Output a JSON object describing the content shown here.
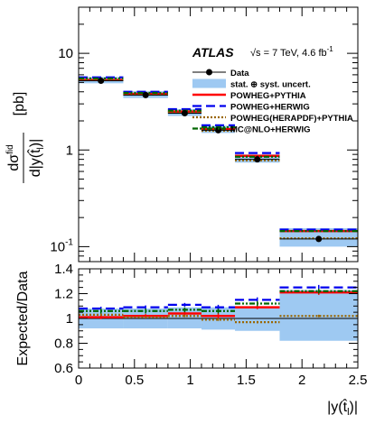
{
  "chart_data": [
    {
      "type": "line",
      "panel": "main",
      "ylabel": "dσ^fid / d|y(t̂_l)| [pb]",
      "yscale": "log",
      "ylim": [
        0.07,
        30
      ],
      "xlim": [
        0,
        2.5
      ],
      "yticks": [
        {
          "v": 0.1,
          "label": "10",
          "sup": "-1"
        },
        {
          "v": 1,
          "label": "1",
          "sup": ""
        },
        {
          "v": 10,
          "label": "10",
          "sup": ""
        }
      ],
      "atlas": "ATLAS",
      "energy_text": "√s = 7 TeV, 4.6 fb",
      "energy_sup": "-1",
      "bins": [
        [
          0,
          0.4
        ],
        [
          0.4,
          0.8
        ],
        [
          0.8,
          1.1
        ],
        [
          1.1,
          1.4
        ],
        [
          1.4,
          1.8
        ],
        [
          1.8,
          2.5
        ]
      ],
      "data_x": [
        0.2,
        0.6,
        0.95,
        1.25,
        1.6,
        2.15
      ],
      "data_y": [
        5.2,
        3.7,
        2.4,
        1.6,
        0.8,
        0.12
      ],
      "band": [
        [
          4.9,
          5.7
        ],
        [
          3.45,
          4.05
        ],
        [
          2.25,
          2.65
        ],
        [
          1.5,
          1.78
        ],
        [
          0.74,
          0.9
        ],
        [
          0.1,
          0.155
        ]
      ],
      "series": [
        {
          "name": "POWHEG+PYTHIA",
          "color": "#ff0000",
          "style": "solid",
          "values": [
            5.3,
            3.8,
            2.5,
            1.65,
            0.87,
            0.145
          ]
        },
        {
          "name": "POWHEG+HERWIG",
          "color": "#0000ee",
          "style": "dash",
          "values": [
            5.65,
            4.0,
            2.65,
            1.8,
            0.93,
            0.15
          ]
        },
        {
          "name": "POWHEG(HERAPDF)+PYTHIA",
          "color": "#996600",
          "style": "dot",
          "values": [
            5.35,
            3.75,
            2.45,
            1.58,
            0.78,
            0.122
          ]
        },
        {
          "name": "MC@NLO+HERWIG",
          "color": "#006600",
          "style": "dashdot",
          "values": [
            5.5,
            3.9,
            2.55,
            1.72,
            0.85,
            0.145
          ]
        }
      ],
      "legend": [
        {
          "label": "Data",
          "kind": "data"
        },
        {
          "label": "stat. ⊕ syst. uncert.",
          "kind": "band"
        },
        {
          "label": "POWHEG+PYTHIA",
          "kind": "series",
          "series": 0
        },
        {
          "label": "POWHEG+HERWIG",
          "kind": "series",
          "series": 1
        },
        {
          "label": "POWHEG(HERAPDF)+PYTHIA",
          "kind": "series",
          "series": 2
        },
        {
          "label": "MC@NLO+HERWIG",
          "kind": "series",
          "series": 3
        }
      ],
      "legend_position": "top-right"
    },
    {
      "type": "line",
      "panel": "ratio",
      "ylabel": "Expected/Data",
      "xlabel": "|y(t̂_l)|",
      "xlim": [
        0,
        2.5
      ],
      "ylim": [
        0.6,
        1.4
      ],
      "xticks": [
        0,
        0.5,
        1,
        1.5,
        2,
        2.5
      ],
      "xtick_labels": [
        "0",
        "0.5",
        "1",
        "1.5",
        "2",
        "2.5"
      ],
      "yticks": [
        0.6,
        0.8,
        1,
        1.2,
        1.4
      ],
      "ytick_labels": [
        "0.6",
        "0.8",
        "1",
        "1.2",
        "1.4"
      ],
      "reference_line": 1,
      "band": [
        [
          0.92,
          1.08
        ],
        [
          0.92,
          1.08
        ],
        [
          0.92,
          1.09
        ],
        [
          0.91,
          1.09
        ],
        [
          0.9,
          1.09
        ],
        [
          0.82,
          1.23
        ]
      ],
      "series": [
        {
          "name": "POWHEG+PYTHIA",
          "color": "#ff0000",
          "style": "solid",
          "values": [
            1.01,
            1.02,
            1.04,
            1.02,
            1.09,
            1.21
          ],
          "errors": [
            0.015,
            0.015,
            0.015,
            0.02,
            0.015,
            0.02
          ]
        },
        {
          "name": "POWHEG+HERWIG",
          "color": "#0000ee",
          "style": "dash",
          "values": [
            1.08,
            1.09,
            1.11,
            1.09,
            1.15,
            1.25
          ],
          "errors": [
            0.015,
            0.015,
            0.015,
            0.02,
            0.02,
            0.02
          ]
        },
        {
          "name": "POWHEG(HERAPDF)+PYTHIA",
          "color": "#996600",
          "style": "dot",
          "values": [
            1.03,
            1.01,
            1.02,
            0.99,
            0.97,
            1.02
          ],
          "errors": [
            0.01,
            0.01,
            0.01,
            0.01,
            0.01,
            0.01
          ]
        },
        {
          "name": "MC@NLO+HERWIG",
          "color": "#006600",
          "style": "dashdot",
          "values": [
            1.06,
            1.06,
            1.07,
            1.06,
            1.12,
            1.22
          ],
          "errors": [
            0.02,
            0.02,
            0.02,
            0.02,
            0.02,
            0.02
          ]
        }
      ]
    }
  ]
}
